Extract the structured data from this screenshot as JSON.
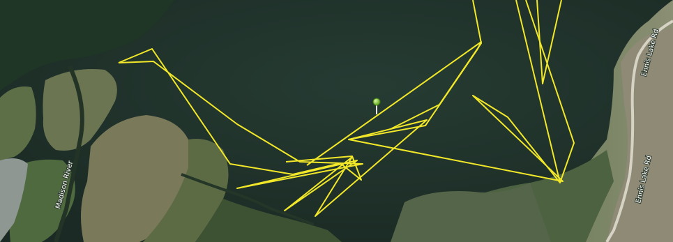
{
  "map": {
    "view": "satellite",
    "labels": {
      "river": "Madison River",
      "road_upper": "Ennis Lake Rd",
      "road_lower": "Ennis Lake Rd"
    },
    "track": {
      "color": "#f2e829",
      "marker_color": "#8fd63a"
    }
  }
}
